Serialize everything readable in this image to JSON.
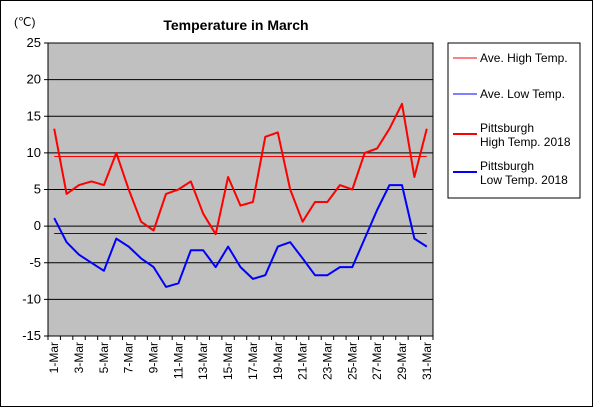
{
  "chart_data": {
    "type": "line",
    "title": "Temperature in March",
    "yunit": "(℃)",
    "ylim": [
      -15,
      25
    ],
    "ytick_step": 5,
    "yticks": [
      "25",
      "20",
      "15",
      "10",
      "5",
      "0",
      "-5",
      "-10",
      "-15"
    ],
    "grid": true,
    "plot_bg": "#c0c0c0",
    "legend_position": "right",
    "x": [
      "1-Mar",
      "2-Mar",
      "3-Mar",
      "4-Mar",
      "5-Mar",
      "6-Mar",
      "7-Mar",
      "8-Mar",
      "9-Mar",
      "10-Mar",
      "11-Mar",
      "12-Mar",
      "13-Mar",
      "14-Mar",
      "15-Mar",
      "16-Mar",
      "17-Mar",
      "18-Mar",
      "19-Mar",
      "20-Mar",
      "21-Mar",
      "22-Mar",
      "23-Mar",
      "24-Mar",
      "25-Mar",
      "26-Mar",
      "27-Mar",
      "28-Mar",
      "29-Mar",
      "30-Mar",
      "31-Mar"
    ],
    "xtick_labels": [
      "1-Mar",
      "3-Mar",
      "5-Mar",
      "7-Mar",
      "9-Mar",
      "11-Mar",
      "13-Mar",
      "15-Mar",
      "17-Mar",
      "19-Mar",
      "21-Mar",
      "23-Mar",
      "25-Mar",
      "27-Mar",
      "29-Mar",
      "31-Mar"
    ],
    "series": [
      {
        "name": "Ave. High Temp.",
        "color": "#ff0000",
        "width": 1,
        "values": [
          9.5,
          9.5,
          9.5,
          9.5,
          9.5,
          9.5,
          9.5,
          9.5,
          9.5,
          9.5,
          9.5,
          9.5,
          9.5,
          9.5,
          9.5,
          9.5,
          9.5,
          9.5,
          9.5,
          9.5,
          9.5,
          9.5,
          9.5,
          9.5,
          9.5,
          9.5,
          9.5,
          9.5,
          9.5,
          9.5,
          9.5
        ]
      },
      {
        "name": "Ave. Low Temp.",
        "color": "#0000ff",
        "width": 1,
        "values": [
          -1,
          -1,
          -1,
          -1,
          -1,
          -1,
          -1,
          -1,
          -1,
          -1,
          -1,
          -1,
          -1,
          -1,
          -1,
          -1,
          -1,
          -1,
          -1,
          -1,
          -1,
          -1,
          -1,
          -1,
          -1,
          -1,
          -1,
          -1,
          -1,
          -1,
          -1
        ]
      },
      {
        "name": "Pittsburgh High Temp. 2018",
        "legend_lines": [
          "Pittsburgh",
          "High Temp. 2018"
        ],
        "color": "#ff0000",
        "width": 2,
        "values": [
          13.3,
          4.4,
          5.6,
          6.1,
          5.6,
          10,
          5,
          0.6,
          -0.6,
          4.4,
          5,
          6.1,
          1.7,
          -1.1,
          6.7,
          2.8,
          3.3,
          12.2,
          12.8,
          5,
          0.6,
          3.3,
          3.3,
          5.6,
          5,
          10,
          10.6,
          13.3,
          16.7,
          6.7,
          13.3
        ]
      },
      {
        "name": "Pittsburgh Low Temp. 2018",
        "legend_lines": [
          "Pittsburgh",
          "Low Temp. 2018"
        ],
        "color": "#0000ff",
        "width": 2,
        "values": [
          1.1,
          -2.2,
          -3.9,
          -5,
          -6.1,
          -1.7,
          -2.8,
          -4.4,
          -5.6,
          -8.3,
          -7.8,
          -3.3,
          -3.3,
          -5.6,
          -2.8,
          -5.6,
          -7.2,
          -6.7,
          -2.8,
          -2.2,
          -4.4,
          -6.7,
          -6.7,
          -5.6,
          -5.6,
          -1.7,
          2.2,
          5.6,
          5.6,
          -1.7,
          -2.8
        ]
      }
    ]
  }
}
